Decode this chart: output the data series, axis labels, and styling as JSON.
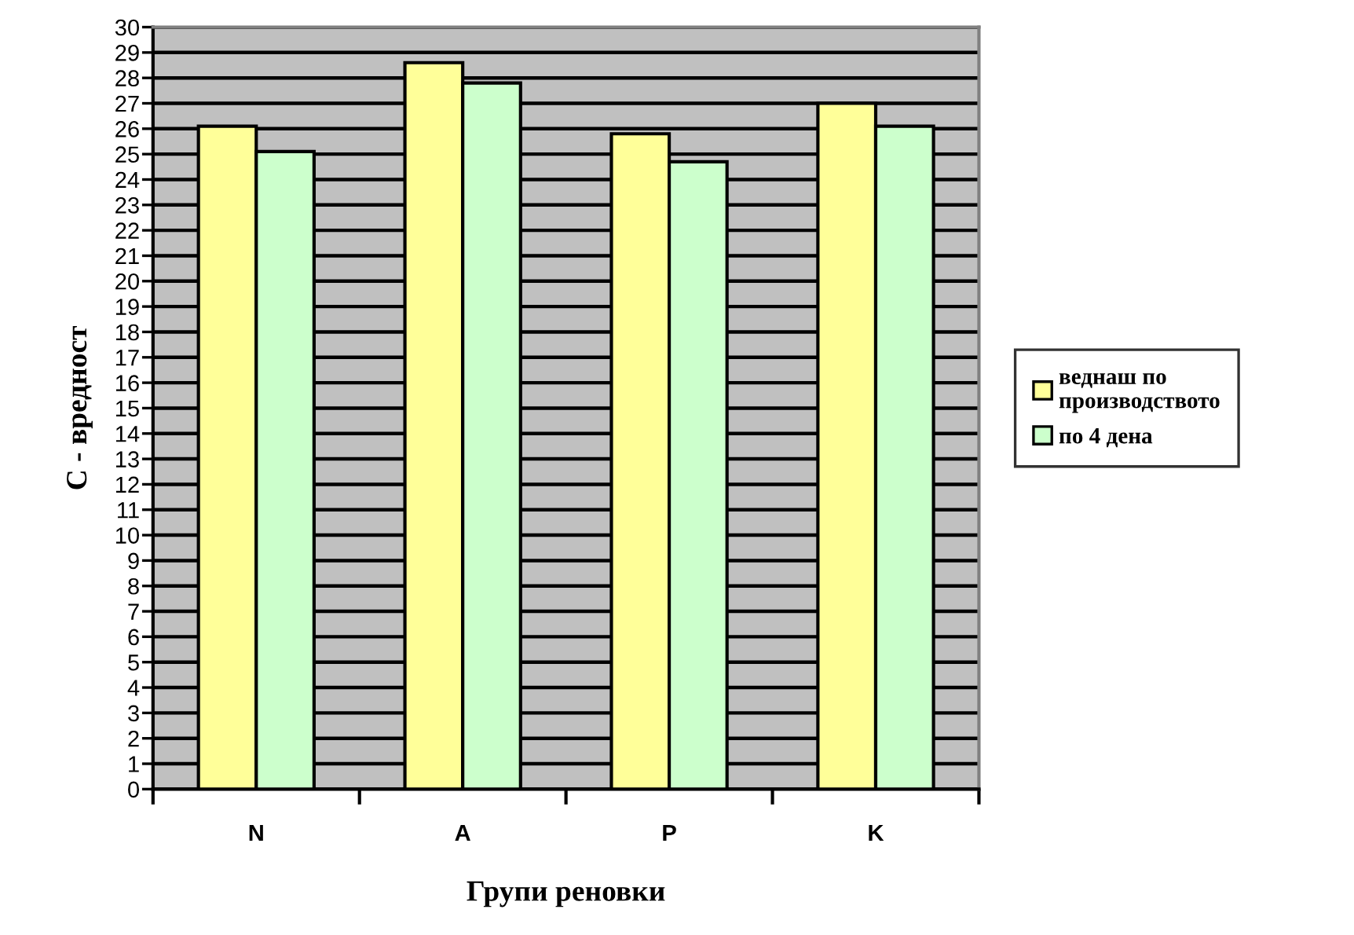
{
  "chart_data": {
    "type": "bar",
    "xlabel": "Групи реновки",
    "ylabel": "C - вредност",
    "categories": [
      "N",
      "A",
      "P",
      "K"
    ],
    "series": [
      {
        "name": "веднаш по производството",
        "color": "#ffff99",
        "values": [
          26.1,
          28.6,
          25.8,
          27.0
        ]
      },
      {
        "name": "по 4 дена",
        "color": "#ccffcc",
        "values": [
          25.1,
          27.8,
          24.7,
          26.1
        ]
      }
    ],
    "ylim": [
      0,
      30
    ],
    "yticks": [
      0,
      1,
      2,
      3,
      4,
      5,
      6,
      7,
      8,
      9,
      10,
      11,
      12,
      13,
      14,
      15,
      16,
      17,
      18,
      19,
      20,
      21,
      22,
      23,
      24,
      25,
      26,
      27,
      28,
      29,
      30
    ],
    "grid": "y",
    "legend": "right"
  }
}
